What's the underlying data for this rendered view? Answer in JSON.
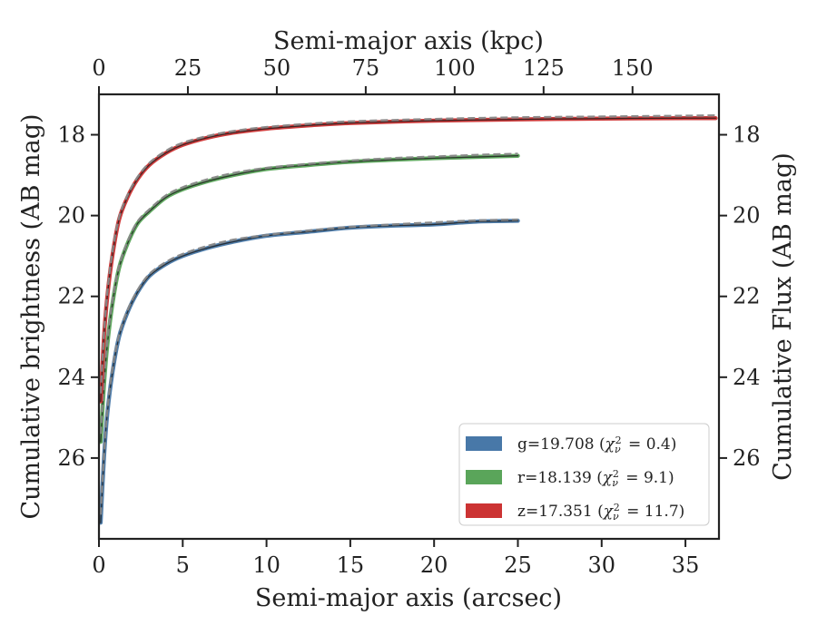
{
  "chart_data": {
    "type": "line",
    "xlabel": "Semi-major axis (arcsec)",
    "x2label": "Semi-major axis (kpc)",
    "ylabel": "Cumulative brightness (AB mag)",
    "y2label": "Cumulative Flux (AB mag)",
    "xlim": [
      0,
      37
    ],
    "ylim": [
      28.0,
      17.0
    ],
    "x2lim": [
      0,
      174.3
    ],
    "x_ticks": [
      "0",
      "5",
      "10",
      "15",
      "20",
      "25",
      "30",
      "35"
    ],
    "x_tick_values": [
      0,
      5,
      10,
      15,
      20,
      25,
      30,
      35
    ],
    "x2_ticks": [
      "0",
      "25",
      "50",
      "75",
      "100",
      "125",
      "150"
    ],
    "x2_tick_values": [
      0,
      25,
      50,
      75,
      100,
      125,
      150
    ],
    "y_ticks": [
      "18",
      "20",
      "22",
      "24",
      "26"
    ],
    "y_tick_values": [
      18,
      20,
      22,
      24,
      26
    ],
    "legend_position": "lower-right",
    "grid": false,
    "series": [
      {
        "name": "g=19.708",
        "chi2": "0.4",
        "color": "#4878a8",
        "model_color": "#888888",
        "x": [
          0.1,
          0.3,
          0.5,
          0.8,
          1.2,
          1.7,
          2.3,
          3.0,
          4.0,
          5.0,
          6.5,
          8.0,
          10.0,
          12.5,
          15.0,
          17.5,
          20.0,
          22.5,
          25.0
        ],
        "y": [
          27.6,
          26.0,
          24.9,
          23.9,
          23.0,
          22.4,
          21.9,
          21.5,
          21.2,
          21.0,
          20.8,
          20.65,
          20.5,
          20.4,
          20.3,
          20.25,
          20.22,
          20.15,
          20.13
        ],
        "model_y": [
          27.4,
          25.9,
          24.8,
          23.8,
          22.95,
          22.35,
          21.85,
          21.45,
          21.15,
          20.95,
          20.75,
          20.6,
          20.48,
          20.37,
          20.28,
          20.22,
          20.17,
          20.12,
          20.1
        ]
      },
      {
        "name": "r=18.139",
        "chi2": "9.1",
        "color": "#5aa55a",
        "model_color": "#888888",
        "x": [
          0.1,
          0.3,
          0.5,
          0.8,
          1.2,
          1.7,
          2.3,
          3.0,
          4.0,
          5.0,
          6.5,
          8.0,
          10.0,
          12.5,
          15.0,
          17.5,
          20.0,
          22.5,
          25.0
        ],
        "y": [
          25.6,
          24.2,
          23.2,
          22.2,
          21.3,
          20.7,
          20.2,
          19.9,
          19.55,
          19.35,
          19.15,
          19.0,
          18.85,
          18.75,
          18.67,
          18.62,
          18.58,
          18.55,
          18.52
        ],
        "model_y": [
          25.4,
          24.1,
          23.1,
          22.1,
          21.25,
          20.65,
          20.15,
          19.85,
          19.5,
          19.3,
          19.1,
          18.95,
          18.82,
          18.72,
          18.64,
          18.58,
          18.54,
          18.5,
          18.47
        ]
      },
      {
        "name": "z=17.351",
        "chi2": "11.7",
        "color": "#cc3333",
        "model_color": "#888888",
        "x": [
          0.1,
          0.3,
          0.5,
          0.8,
          1.2,
          1.7,
          2.3,
          3.0,
          4.0,
          5.0,
          6.5,
          8.0,
          10.0,
          12.5,
          15.0,
          20.0,
          25.0,
          30.0,
          35.0,
          36.8
        ],
        "y": [
          24.6,
          23.0,
          22.0,
          21.0,
          20.1,
          19.55,
          19.1,
          18.75,
          18.45,
          18.25,
          18.07,
          17.95,
          17.85,
          17.77,
          17.71,
          17.65,
          17.62,
          17.6,
          17.59,
          17.59
        ],
        "model_y": [
          24.4,
          22.9,
          21.9,
          20.9,
          20.05,
          19.5,
          19.05,
          18.7,
          18.4,
          18.2,
          18.03,
          17.91,
          17.81,
          17.73,
          17.67,
          17.61,
          17.57,
          17.55,
          17.53,
          17.52
        ]
      }
    ]
  }
}
